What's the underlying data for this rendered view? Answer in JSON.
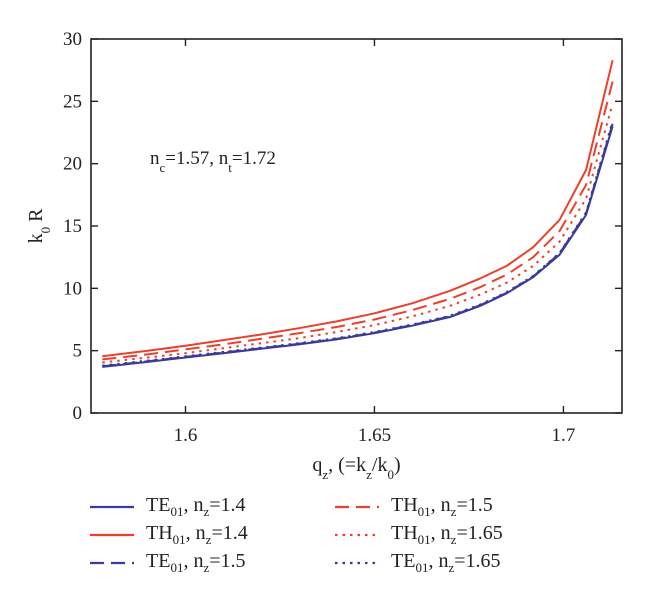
{
  "chart_data": {
    "type": "line",
    "xlabel": {
      "base": "q",
      "sub": "z",
      "rest": ", (=k",
      "sub2": "z",
      "rest2": "/k",
      "sub3": "0",
      "rest3": ")"
    },
    "ylabel": {
      "base": "k",
      "sub": "0",
      "rest": " R"
    },
    "xlim": [
      1.575,
      1.7155
    ],
    "ylim": [
      0,
      30
    ],
    "xticks": [
      1.6,
      1.65,
      1.7
    ],
    "xtick_labels": [
      "1.6",
      "1.65",
      "1.7"
    ],
    "yticks": [
      0,
      5,
      10,
      15,
      20,
      25,
      30
    ],
    "ytick_labels": [
      "0",
      "5",
      "10",
      "15",
      "20",
      "25",
      "30"
    ],
    "annotation": {
      "n1": "n",
      "s1": "c",
      "v1": "=1.57, n",
      "s2": "t",
      "v2": "=1.72"
    },
    "x": [
      1.578,
      1.59,
      1.6,
      1.61,
      1.62,
      1.63,
      1.64,
      1.65,
      1.66,
      1.67,
      1.678,
      1.685,
      1.692,
      1.699,
      1.706,
      1.713
    ],
    "series": [
      {
        "name": "TE01, nz=1.4",
        "label_main": "TE",
        "label_sub": "01",
        "label_mid": ", n",
        "label_sub2": "z",
        "label_end": "=1.4",
        "color": "#3a3a9a",
        "dash": "solid",
        "values": [
          3.7,
          4.1,
          4.45,
          4.8,
          5.15,
          5.5,
          5.9,
          6.4,
          7.0,
          7.7,
          8.6,
          9.6,
          10.9,
          12.7,
          15.9,
          23.0
        ]
      },
      {
        "name": "TH01, nz=1.4",
        "label_main": "TH",
        "label_sub": "01",
        "label_mid": ", n",
        "label_sub2": "z",
        "label_end": "=1.4",
        "color": "#e8412c",
        "dash": "solid",
        "values": [
          4.55,
          5.0,
          5.4,
          5.85,
          6.3,
          6.8,
          7.35,
          8.0,
          8.8,
          9.8,
          10.8,
          11.8,
          13.3,
          15.5,
          19.5,
          28.3
        ]
      },
      {
        "name": "TE01, nz=1.5",
        "label_main": "TE",
        "label_sub": "01",
        "label_mid": ", n",
        "label_sub2": "z",
        "label_end": "=1.5",
        "color": "#3a3a9a",
        "dash": "dashed",
        "values": [
          3.75,
          4.15,
          4.5,
          4.85,
          5.2,
          5.55,
          5.95,
          6.45,
          7.05,
          7.75,
          8.65,
          9.65,
          10.95,
          12.8,
          16.0,
          23.2
        ]
      },
      {
        "name": "TH01, nz=1.5",
        "label_main": "TH",
        "label_sub": "01",
        "label_mid": ", n",
        "label_sub2": "z",
        "label_end": "=1.5",
        "color": "#e8412c",
        "dash": "dashed",
        "values": [
          4.3,
          4.7,
          5.1,
          5.5,
          5.95,
          6.4,
          6.9,
          7.5,
          8.25,
          9.15,
          10.1,
          11.1,
          12.5,
          14.6,
          18.3,
          26.6
        ]
      },
      {
        "name": "TE01, nz=1.65",
        "label_main": "TE",
        "label_sub": "01",
        "label_mid": ", n",
        "label_sub2": "z",
        "label_end": "=1.65",
        "color": "#3a3a9a",
        "dash": "dotted",
        "values": [
          3.8,
          4.2,
          4.55,
          4.9,
          5.25,
          5.6,
          6.0,
          6.5,
          7.1,
          7.8,
          8.7,
          9.7,
          11.0,
          12.85,
          16.1,
          23.4
        ]
      },
      {
        "name": "TH01, nz=1.65",
        "label_main": "TH",
        "label_sub": "01",
        "label_mid": ", n",
        "label_sub2": "z",
        "label_end": "=1.65",
        "color": "#e8412c",
        "dash": "dotted",
        "values": [
          4.05,
          4.45,
          4.8,
          5.2,
          5.6,
          6.0,
          6.5,
          7.05,
          7.75,
          8.6,
          9.5,
          10.45,
          11.8,
          13.75,
          17.2,
          24.8
        ]
      }
    ],
    "legend_placement": "bottom",
    "grid": false
  }
}
